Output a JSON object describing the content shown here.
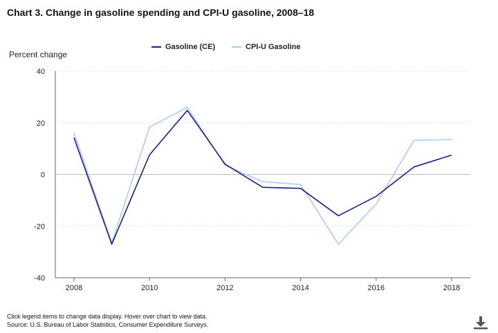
{
  "chart_data": {
    "type": "line",
    "title": "Chart 3. Change in gasoline spending and CPI-U gasoline, 2008–18",
    "ylabel": "Percent change",
    "xlabel": "",
    "x": [
      2008,
      2009,
      2010,
      2011,
      2012,
      2013,
      2014,
      2015,
      2016,
      2017,
      2018
    ],
    "xticks": [
      "2008",
      "2010",
      "2012",
      "2014",
      "2016",
      "2018"
    ],
    "yticks": [
      "40",
      "20",
      "0",
      "-20",
      "-40"
    ],
    "ylim": [
      -40,
      40
    ],
    "grid": "horizontal dotted",
    "legend_position": "top-center",
    "series": [
      {
        "name": "Gasoline (CE)",
        "color": "#1f1a8a",
        "values": [
          14.2,
          -27.0,
          7.6,
          24.8,
          4.0,
          -5.0,
          -5.4,
          -16.0,
          -8.5,
          2.9,
          7.5
        ]
      },
      {
        "name": "CPI-U Gasoline",
        "color": "#a9cdf0",
        "values": [
          16.2,
          -26.5,
          18.3,
          26.0,
          3.5,
          -2.8,
          -3.9,
          -27.0,
          -11.5,
          13.2,
          13.5
        ]
      }
    ]
  },
  "footer": {
    "note": "Click legend items to change data display. Hover over chart to view data.",
    "source": "Source: U.S. Bureau of Labor Statistics, Consumer Expenditure Surveys."
  },
  "download_icon": "download-icon"
}
